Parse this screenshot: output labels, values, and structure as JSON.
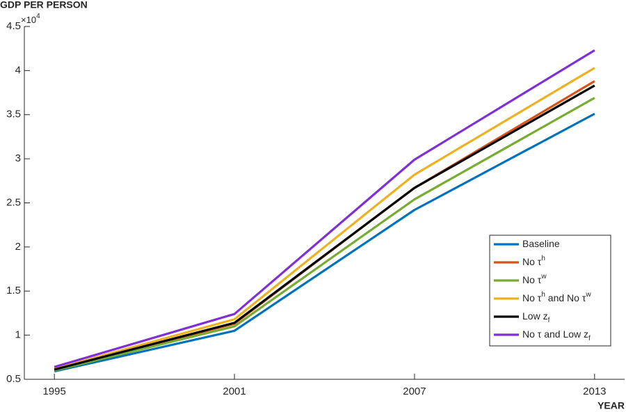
{
  "chart_data": {
    "type": "line",
    "ylabel": "GDP PER PERSON",
    "xlabel": "YEAR",
    "y_multiplier": {
      "base": "×10",
      "exponent": "4"
    },
    "x": [
      1995,
      2001,
      2007,
      2013
    ],
    "xlim": [
      1994,
      2014
    ],
    "xticks": [
      1995,
      2001,
      2007,
      2013
    ],
    "ylim": [
      0.5,
      4.5
    ],
    "yticks": [
      0.5,
      1,
      1.5,
      2,
      2.5,
      3,
      3.5,
      4,
      4.5
    ],
    "legend": "lower right",
    "series": [
      {
        "name": [
          "Baseline"
        ],
        "color": "#0072bd",
        "values": [
          0.59,
          1.05,
          2.42,
          3.51
        ]
      },
      {
        "name": [
          "No τ",
          {
            "sup": "h"
          }
        ],
        "color": "#d95319",
        "values": [
          0.61,
          1.13,
          2.67,
          3.88
        ]
      },
      {
        "name": [
          "No τ",
          {
            "sup": "w"
          }
        ],
        "color": "#77ac30",
        "values": [
          0.6,
          1.1,
          2.54,
          3.69
        ]
      },
      {
        "name": [
          "No τ",
          {
            "sup": "h"
          },
          " and No τ",
          {
            "sup": "w"
          }
        ],
        "color": "#edb120",
        "values": [
          0.62,
          1.18,
          2.82,
          4.03
        ]
      },
      {
        "name": [
          "Low z",
          {
            "sub": "f"
          }
        ],
        "color": "#000000",
        "values": [
          0.61,
          1.14,
          2.67,
          3.83
        ]
      },
      {
        "name": [
          "No τ and Low z",
          {
            "sub": "f"
          }
        ],
        "color": "#7e2fd6",
        "values": [
          0.64,
          1.24,
          2.99,
          4.23
        ]
      }
    ]
  }
}
